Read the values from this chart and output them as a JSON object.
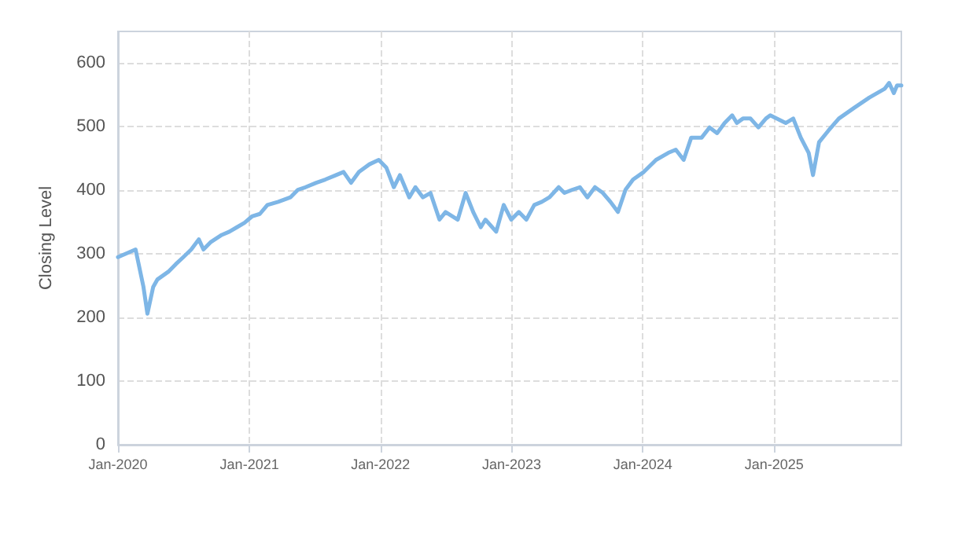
{
  "chart_data": {
    "type": "line",
    "ylabel": "Closing Level",
    "color": "#7eb6e6",
    "x": [
      "2020-01-01",
      "2020-02-19",
      "2020-03-12",
      "2020-03-23",
      "2020-04-08",
      "2020-04-20",
      "2020-05-20",
      "2020-06-10",
      "2020-07-01",
      "2020-07-23",
      "2020-08-13",
      "2020-08-26",
      "2020-09-16",
      "2020-10-16",
      "2020-11-06",
      "2020-11-27",
      "2020-12-18",
      "2021-01-08",
      "2021-01-30",
      "2021-02-20",
      "2021-03-22",
      "2021-04-25",
      "2021-05-16",
      "2021-06-06",
      "2021-07-06",
      "2021-07-31",
      "2021-08-30",
      "2021-09-20",
      "2021-10-11",
      "2021-11-02",
      "2021-12-01",
      "2021-12-27",
      "2022-01-17",
      "2022-02-07",
      "2022-02-24",
      "2022-03-22",
      "2022-04-08",
      "2022-04-29",
      "2022-05-20",
      "2022-06-14",
      "2022-07-01",
      "2022-08-04",
      "2022-08-26",
      "2022-09-16",
      "2022-10-07",
      "2022-10-20",
      "2022-11-19",
      "2022-12-10",
      "2022-12-31",
      "2023-01-21",
      "2023-02-11",
      "2023-03-05",
      "2023-03-26",
      "2023-04-16",
      "2023-05-12",
      "2023-05-28",
      "2023-06-19",
      "2023-07-10",
      "2023-07-31",
      "2023-08-21",
      "2023-09-12",
      "2023-10-03",
      "2023-10-24",
      "2023-11-14",
      "2023-12-05",
      "2024-01-04",
      "2024-02-07",
      "2024-03-12",
      "2024-04-02",
      "2024-04-24",
      "2024-05-15",
      "2024-06-13",
      "2024-07-05",
      "2024-07-26",
      "2024-08-16",
      "2024-09-06",
      "2024-09-19",
      "2024-10-06",
      "2024-10-27",
      "2024-11-18",
      "2024-12-09",
      "2024-12-21",
      "2025-02-02",
      "2025-02-23",
      "2025-03-16",
      "2025-04-07",
      "2025-04-19",
      "2025-05-06",
      "2025-06-01",
      "2025-06-30",
      "2025-08-12",
      "2025-09-23",
      "2025-11-05",
      "2025-11-17",
      "2025-11-30",
      "2025-12-09",
      "2025-12-21"
    ],
    "values": [
      295,
      307,
      248,
      206,
      248,
      260,
      272,
      284,
      295,
      307,
      323,
      307,
      319,
      330,
      335,
      342,
      349,
      359,
      363,
      377,
      382,
      389,
      401,
      405,
      412,
      417,
      424,
      429,
      412,
      429,
      441,
      448,
      436,
      405,
      424,
      389,
      405,
      389,
      396,
      354,
      366,
      354,
      396,
      366,
      342,
      354,
      335,
      377,
      354,
      366,
      354,
      377,
      382,
      389,
      405,
      396,
      401,
      405,
      389,
      405,
      396,
      382,
      366,
      401,
      417,
      429,
      448,
      459,
      464,
      448,
      483,
      483,
      499,
      490,
      506,
      518,
      506,
      513,
      513,
      499,
      513,
      518,
      506,
      513,
      483,
      459,
      424,
      476,
      494,
      513,
      530,
      546,
      560,
      569,
      553,
      565,
      565
    ],
    "xlim": [
      "2020-01-01",
      "2025-12-21"
    ],
    "xticks": [
      {
        "value": "2020-01-01",
        "label": "Jan-2020"
      },
      {
        "value": "2021-01-01",
        "label": "Jan-2021"
      },
      {
        "value": "2022-01-01",
        "label": "Jan-2022"
      },
      {
        "value": "2023-01-01",
        "label": "Jan-2023"
      },
      {
        "value": "2024-01-01",
        "label": "Jan-2024"
      },
      {
        "value": "2025-01-01",
        "label": "Jan-2025"
      }
    ],
    "ylim": [
      0,
      650
    ],
    "yticks": [
      0,
      100,
      200,
      300,
      400,
      500,
      600
    ],
    "grid": true,
    "marker": "none",
    "line_style": "solid"
  }
}
